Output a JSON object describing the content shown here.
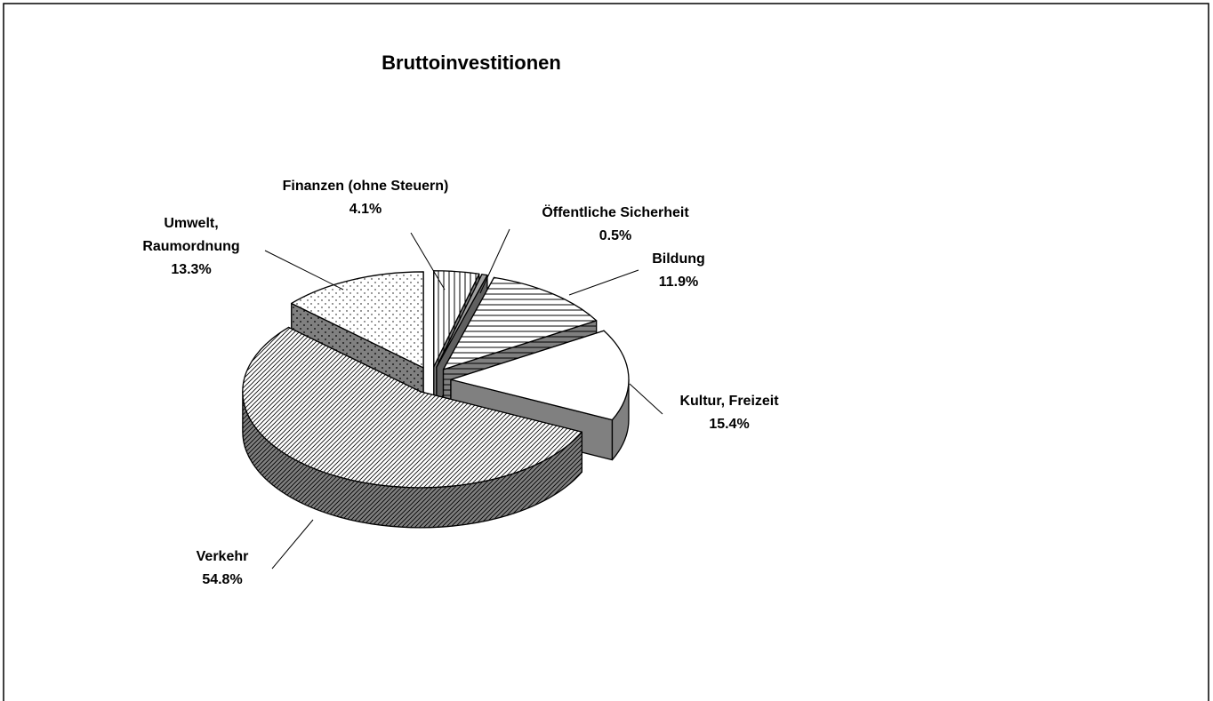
{
  "chart_data": {
    "type": "pie",
    "title": "Bruttoinvestitionen",
    "categories": [
      "Finanzen (ohne Steuern)",
      "Öffentliche Sicherheit",
      "Bildung",
      "Kultur, Freizeit",
      "Verkehr",
      "Umwelt, Raumordnung"
    ],
    "values": [
      4.1,
      0.5,
      11.9,
      15.4,
      54.8,
      13.3
    ],
    "value_labels": [
      "4.1%",
      "0.5%",
      "11.9%",
      "15.4%",
      "54.8%",
      "13.3%"
    ],
    "fills": [
      "vertical",
      "solid",
      "horizontal",
      "none",
      "diagonal",
      "dots"
    ],
    "exploded": true,
    "three_d": true
  }
}
